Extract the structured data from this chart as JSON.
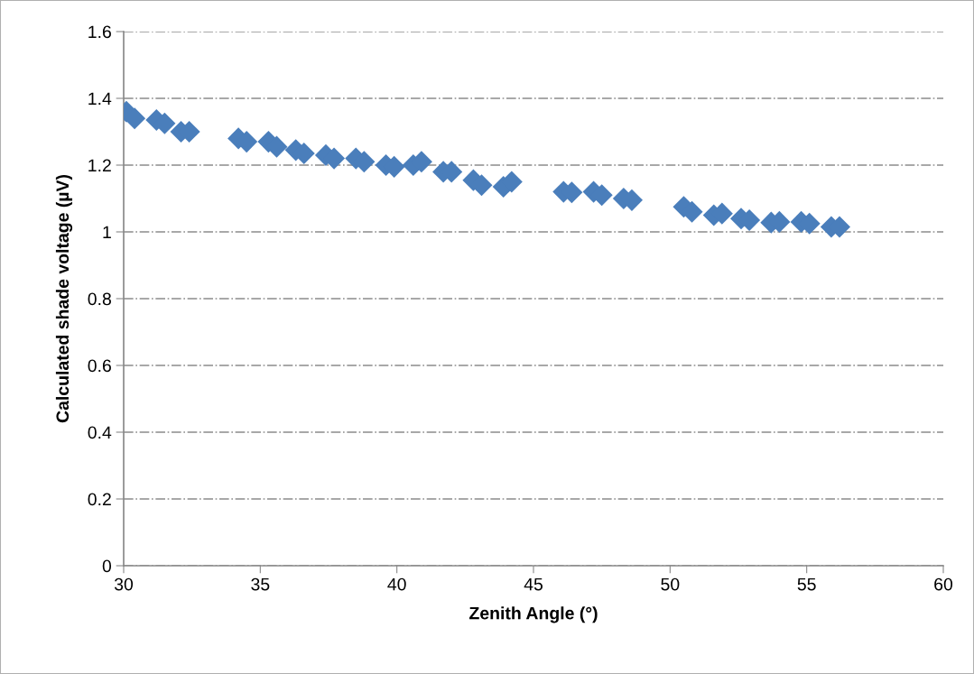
{
  "chart_data": {
    "type": "scatter",
    "xlabel": "Zenith Angle (°)",
    "ylabel": "Calculated shade voltage (µV)",
    "x": [
      30.1,
      30.4,
      31.2,
      31.5,
      32.1,
      32.4,
      34.2,
      34.5,
      35.3,
      35.6,
      36.3,
      36.6,
      37.4,
      37.7,
      38.5,
      38.8,
      39.6,
      39.9,
      40.6,
      40.9,
      41.7,
      42.0,
      42.8,
      43.1,
      43.9,
      44.2,
      46.1,
      46.4,
      47.2,
      47.5,
      48.3,
      48.6,
      50.5,
      50.8,
      51.6,
      51.9,
      52.6,
      52.9,
      53.7,
      54.0,
      54.8,
      55.1,
      55.9,
      56.2
    ],
    "series": [
      {
        "color": "#4a7ebb",
        "values": [
          1.36,
          1.34,
          1.335,
          1.325,
          1.3,
          1.3,
          1.28,
          1.27,
          1.27,
          1.255,
          1.245,
          1.235,
          1.23,
          1.22,
          1.22,
          1.21,
          1.2,
          1.195,
          1.2,
          1.21,
          1.18,
          1.18,
          1.155,
          1.14,
          1.135,
          1.15,
          1.12,
          1.118,
          1.12,
          1.11,
          1.1,
          1.095,
          1.075,
          1.06,
          1.05,
          1.055,
          1.04,
          1.035,
          1.028,
          1.03,
          1.03,
          1.025,
          1.015,
          1.015
        ]
      }
    ],
    "xlim": [
      30,
      60
    ],
    "xticks": [
      30,
      35,
      40,
      45,
      50,
      55,
      60
    ],
    "ylim": [
      0,
      1.6
    ],
    "yticks": [
      0,
      {
        "value": 0.2,
        "label": "0.2"
      },
      {
        "value": 0.4,
        "label": "0.4"
      },
      {
        "value": 0.6,
        "label": "0.6"
      },
      {
        "value": 0.8,
        "label": "0.8"
      },
      1,
      {
        "value": 1.2,
        "label": "1.2"
      },
      {
        "value": 1.4,
        "label": "1.4"
      },
      {
        "value": 1.6,
        "label": "1.6"
      }
    ],
    "grid": "y",
    "marker": "diamond",
    "legend": false
  }
}
